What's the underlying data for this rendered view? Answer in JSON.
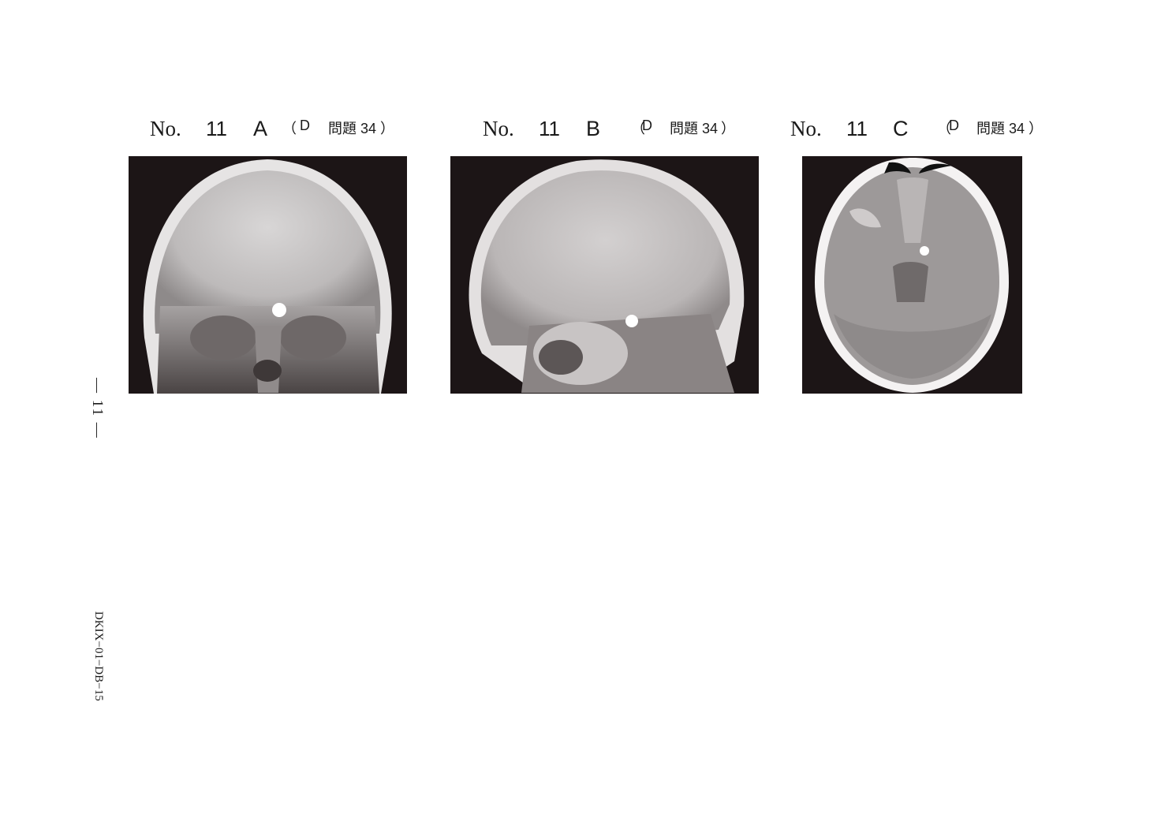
{
  "figures": [
    {
      "no_label": "No.",
      "number": "11",
      "letter": "A",
      "open_paren": "（",
      "section": "D",
      "question": "問題 34",
      "close_paren": "）"
    },
    {
      "no_label": "No.",
      "number": "11",
      "letter": "B",
      "open_paren": "（",
      "section": "D",
      "question": "問題 34",
      "close_paren": "）"
    },
    {
      "no_label": "No.",
      "number": "11",
      "letter": "C",
      "open_paren": "（",
      "section": "D",
      "question": "問題 34",
      "close_paren": "）"
    }
  ],
  "page_number": "— 11 —",
  "document_code": "DKIX−01−DB−15"
}
